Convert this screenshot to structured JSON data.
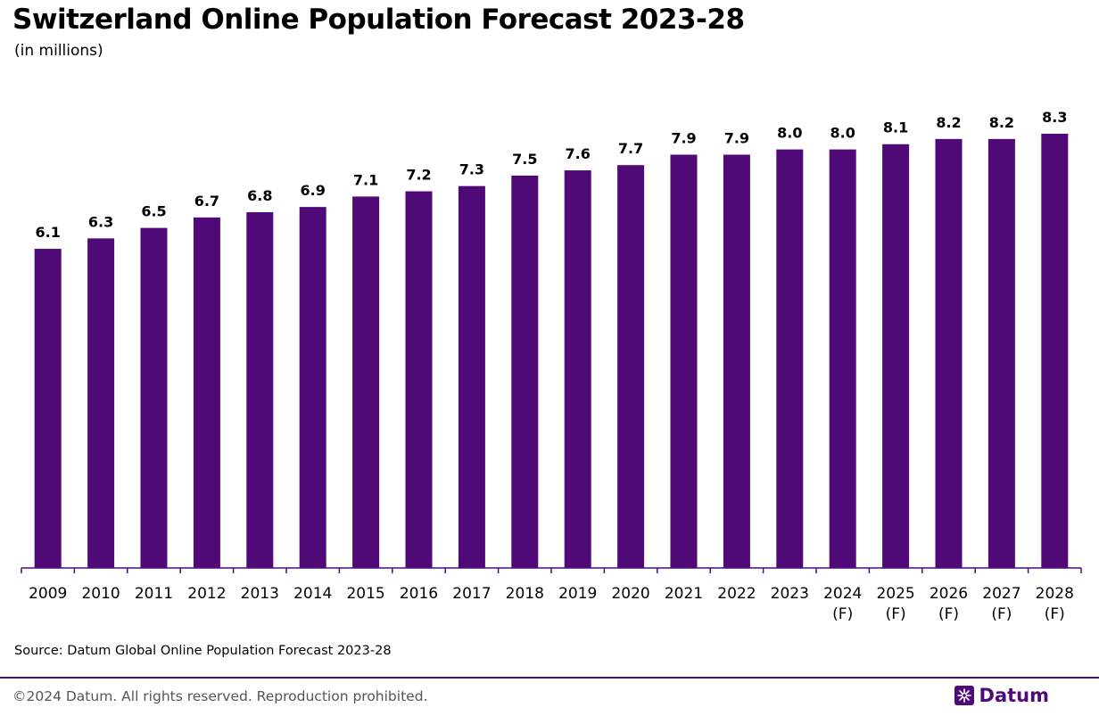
{
  "header": {
    "title": "Switzerland Online Population Forecast 2023-28",
    "subtitle": "(in millions)"
  },
  "footer": {
    "source": "Source: Datum Global Online Population Forecast 2023-28",
    "copyright": "©2024 Datum. All rights reserved. Reproduction prohibited.",
    "brand": "Datum"
  },
  "colors": {
    "bar": "#4f0a78",
    "axis": "#4f0a78",
    "text": "#000000"
  },
  "chart_data": {
    "type": "bar",
    "title": "Switzerland Online Population Forecast 2023-28",
    "subtitle": "(in millions)",
    "xlabel": "",
    "ylabel": "",
    "ylim": [
      0,
      8.3
    ],
    "grid": false,
    "legend": "none",
    "categories": [
      [
        "2009"
      ],
      [
        "2010"
      ],
      [
        "2011"
      ],
      [
        "2012"
      ],
      [
        "2013"
      ],
      [
        "2014"
      ],
      [
        "2015"
      ],
      [
        "2016"
      ],
      [
        "2017"
      ],
      [
        "2018"
      ],
      [
        "2019"
      ],
      [
        "2020"
      ],
      [
        "2021"
      ],
      [
        "2022"
      ],
      [
        "2023"
      ],
      [
        "2024",
        "(F)"
      ],
      [
        "2025",
        "(F)"
      ],
      [
        "2026",
        "(F)"
      ],
      [
        "2027",
        "(F)"
      ],
      [
        "2028",
        "(F)"
      ]
    ],
    "values": [
      6.1,
      6.3,
      6.5,
      6.7,
      6.8,
      6.9,
      7.1,
      7.2,
      7.3,
      7.5,
      7.6,
      7.7,
      7.9,
      7.9,
      8.0,
      8.0,
      8.1,
      8.2,
      8.2,
      8.3
    ],
    "data_labels": [
      "6.1",
      "6.3",
      "6.5",
      "6.7",
      "6.8",
      "6.9",
      "7.1",
      "7.2",
      "7.3",
      "7.5",
      "7.6",
      "7.7",
      "7.9",
      "7.9",
      "8.0",
      "8.0",
      "8.1",
      "8.2",
      "8.2",
      "8.3"
    ]
  }
}
